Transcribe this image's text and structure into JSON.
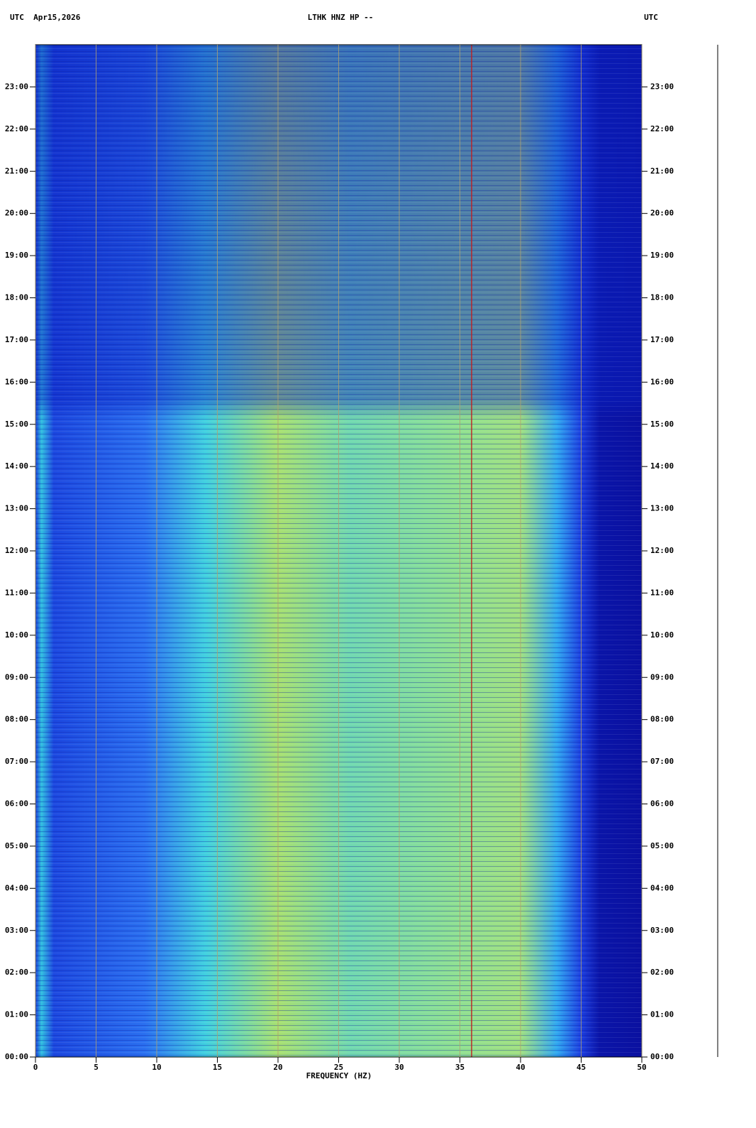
{
  "chart_data": {
    "type": "spectrogram",
    "title": "LTHK HNZ HP --",
    "left_header": "UTC  Apr15,2026",
    "right_header": "UTC",
    "x_label": "FREQUENCY (HZ)",
    "xlim": [
      0,
      50
    ],
    "xticks": [
      0,
      5,
      10,
      15,
      20,
      25,
      30,
      35,
      40,
      45,
      50
    ],
    "ylim": [
      0,
      24
    ],
    "yticks": [
      {
        "value": 0,
        "label": "00:00"
      },
      {
        "value": 1,
        "label": "01:00"
      },
      {
        "value": 2,
        "label": "02:00"
      },
      {
        "value": 3,
        "label": "03:00"
      },
      {
        "value": 4,
        "label": "04:00"
      },
      {
        "value": 5,
        "label": "05:00"
      },
      {
        "value": 6,
        "label": "06:00"
      },
      {
        "value": 7,
        "label": "07:00"
      },
      {
        "value": 8,
        "label": "08:00"
      },
      {
        "value": 9,
        "label": "09:00"
      },
      {
        "value": 10,
        "label": "10:00"
      },
      {
        "value": 11,
        "label": "11:00"
      },
      {
        "value": 12,
        "label": "12:00"
      },
      {
        "value": 13,
        "label": "13:00"
      },
      {
        "value": 14,
        "label": "14:00"
      },
      {
        "value": 15,
        "label": "15:00"
      },
      {
        "value": 16,
        "label": "16:00"
      },
      {
        "value": 17,
        "label": "17:00"
      },
      {
        "value": 18,
        "label": "18:00"
      },
      {
        "value": 19,
        "label": "19:00"
      },
      {
        "value": 20,
        "label": "20:00"
      },
      {
        "value": 21,
        "label": "21:00"
      },
      {
        "value": 22,
        "label": "22:00"
      },
      {
        "value": 23,
        "label": "23:00"
      }
    ],
    "grid": true
  }
}
